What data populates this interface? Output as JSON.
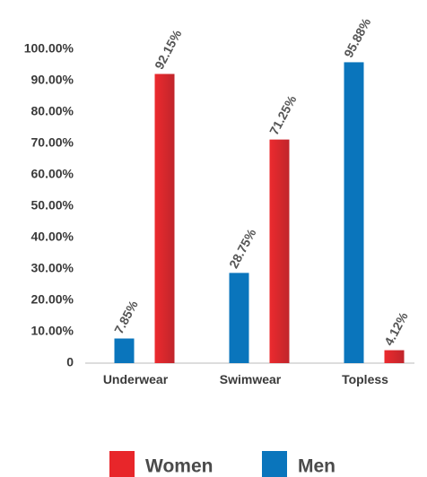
{
  "chart_data": {
    "type": "bar",
    "categories": [
      "Underwear",
      "Swimwear",
      "Topless"
    ],
    "series": [
      {
        "name": "Women",
        "color": "#e8262a",
        "values": [
          92.15,
          71.25,
          4.12
        ],
        "value_labels": [
          "92.15%",
          "71.25%",
          "4.12%"
        ]
      },
      {
        "name": "Men",
        "color": "#0a75bc",
        "values": [
          7.85,
          28.75,
          95.88
        ],
        "value_labels": [
          "7.85%",
          "28.75%",
          "95.88%"
        ]
      }
    ],
    "ylim": [
      0,
      100
    ],
    "yticks": [
      0,
      {
        "value": 10,
        "label": "10.00%"
      },
      {
        "value": 20,
        "label": "20.00%"
      },
      {
        "value": 30,
        "label": "30.00%"
      },
      {
        "value": 40,
        "label": "40.00%"
      },
      {
        "value": 50,
        "label": "50.00%"
      },
      {
        "value": 60,
        "label": "60.00%"
      },
      {
        "value": 70,
        "label": "70.00%"
      },
      {
        "value": 80,
        "label": "80.00%"
      },
      {
        "value": 90,
        "label": "90.00%"
      },
      {
        "value": 100,
        "label": "100.00%"
      }
    ],
    "legend": "bottom"
  }
}
